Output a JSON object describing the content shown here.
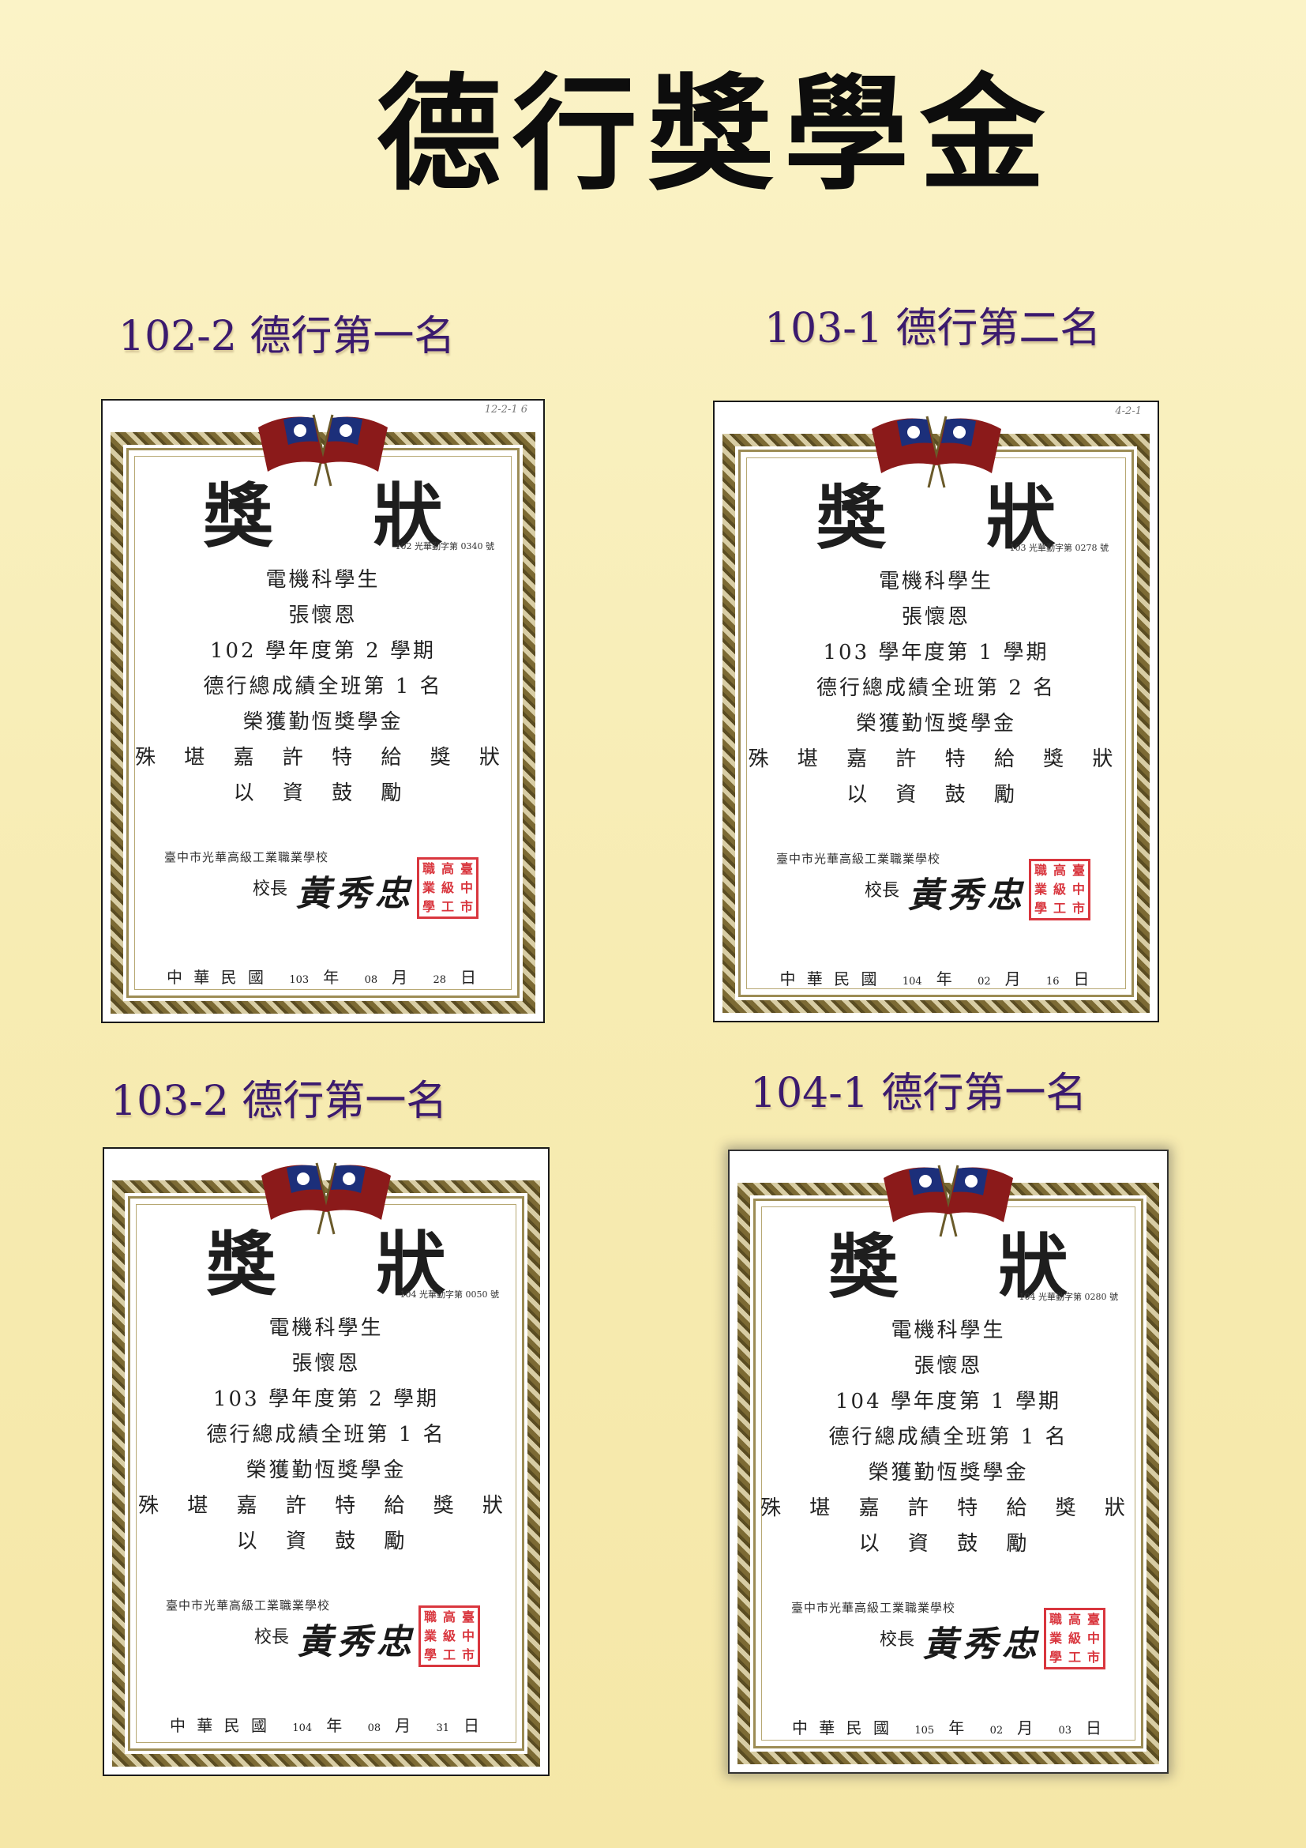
{
  "page_title": "德行獎學金",
  "certificates": [
    {
      "caption": "102-2 德行第一名",
      "corner_note": "12-2-1 6",
      "title": "獎 狀",
      "serial": "102 光華勤字第 0340 號",
      "lines": [
        "電機科學生",
        "張懷恩",
        "102 學年度第 2 學期",
        "德行總成績全班第 1 名",
        "榮獲勤恆獎學金",
        "殊 堪 嘉 許 特 給 獎 狀",
        "以 資 鼓 勵"
      ],
      "school": "臺中市光華高級工業職業學校",
      "principal_label": "校長",
      "signature": "黃秀忠",
      "seal": [
        "職",
        "高",
        "臺",
        "業",
        "級",
        "中",
        "學",
        "工",
        "市"
      ],
      "date_prefix": "中 華 民 國",
      "year": "103",
      "year_unit": "年",
      "month": "08",
      "month_unit": "月",
      "day": "28",
      "day_unit": "日"
    },
    {
      "caption": "103-1 德行第二名",
      "corner_note": "4-2-1",
      "title": "獎 狀",
      "serial": "103 光華勤字第 0278 號",
      "lines": [
        "電機科學生",
        "張懷恩",
        "103 學年度第 1 學期",
        "德行總成績全班第 2 名",
        "榮獲勤恆獎學金",
        "殊 堪 嘉 許 特 給 獎 狀",
        "以 資 鼓 勵"
      ],
      "school": "臺中市光華高級工業職業學校",
      "principal_label": "校長",
      "signature": "黃秀忠",
      "seal": [
        "職",
        "高",
        "臺",
        "業",
        "級",
        "中",
        "學",
        "工",
        "市"
      ],
      "date_prefix": "中 華 民 國",
      "year": "104",
      "year_unit": "年",
      "month": "02",
      "month_unit": "月",
      "day": "16",
      "day_unit": "日"
    },
    {
      "caption": "103-2 德行第一名",
      "corner_note": "",
      "title": "獎 狀",
      "serial": "104 光華勤字第 0050 號",
      "lines": [
        "電機科學生",
        "張懷恩",
        "103 學年度第 2 學期",
        "德行總成績全班第 1 名",
        "榮獲勤恆獎學金",
        "殊 堪 嘉 許 特 給 獎 狀",
        "以 資 鼓 勵"
      ],
      "school": "臺中市光華高級工業職業學校",
      "principal_label": "校長",
      "signature": "黃秀忠",
      "seal": [
        "職",
        "高",
        "臺",
        "業",
        "級",
        "中",
        "學",
        "工",
        "市"
      ],
      "date_prefix": "中 華 民 國",
      "year": "104",
      "year_unit": "年",
      "month": "08",
      "month_unit": "月",
      "day": "31",
      "day_unit": "日"
    },
    {
      "caption": "104-1 德行第一名",
      "corner_note": "",
      "title": "獎 狀",
      "serial": "104 光華勤字第 0280 號",
      "lines": [
        "電機科學生",
        "張懷恩",
        "104 學年度第 1 學期",
        "德行總成績全班第 1 名",
        "榮獲勤恆獎學金",
        "殊 堪 嘉 許 特 給 獎 狀",
        "以 資 鼓 勵"
      ],
      "school": "臺中市光華高級工業職業學校",
      "principal_label": "校長",
      "signature": "黃秀忠",
      "seal": [
        "職",
        "高",
        "臺",
        "業",
        "級",
        "中",
        "學",
        "工",
        "市"
      ],
      "date_prefix": "中 華 民 國",
      "year": "105",
      "year_unit": "年",
      "month": "02",
      "month_unit": "月",
      "day": "03",
      "day_unit": "日"
    }
  ],
  "colors": {
    "background": "#f7ecb3",
    "caption": "#3b1a6e",
    "seal": "#d9363e",
    "frame": "#8a7a43",
    "flag_red": "#8b1a1a",
    "flag_blue": "#1c2f7a"
  }
}
